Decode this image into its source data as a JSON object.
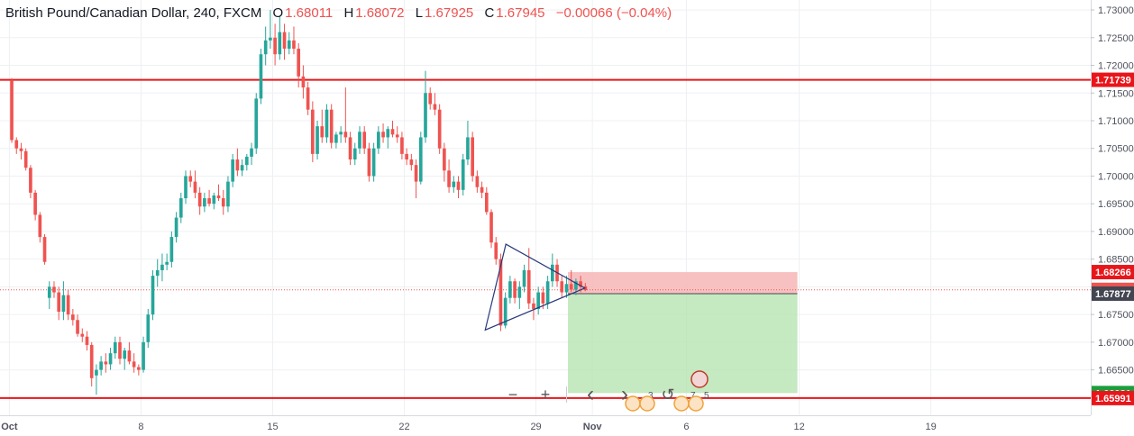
{
  "legend": {
    "symbol": "British Pound/Canadian Dollar, 240, FXCM",
    "open_label": "O",
    "open": "1.68011",
    "high_label": "H",
    "high": "1.68072",
    "low_label": "L",
    "low": "1.67925",
    "close_label": "C",
    "close": "1.67945",
    "change": "−0.00066 (−0.04%)"
  },
  "colors": {
    "up": "#26a69a",
    "down": "#ef5350",
    "level_line": "#e8161b",
    "last_price": "#ef5350",
    "stop_zone": "#f7b6b6",
    "target_zone": "#b7e4b0",
    "triangle": "#283a7a",
    "entry_line": "#434651"
  },
  "toolbar": {
    "zoom_out": "−",
    "zoom_in": "+",
    "scroll_left": "‹",
    "scroll_right": "›",
    "reset": "↺",
    "badge_a": "3",
    "badge_b": "7",
    "badge_c": "5"
  },
  "chart_data": {
    "type": "candlestick",
    "ylim": [
      1.6568,
      1.7318
    ],
    "x_range_days": [
      -0.5,
      57.5
    ],
    "x_ticks": [
      {
        "label": "Oct",
        "day": 0
      },
      {
        "label": "8",
        "day": 7
      },
      {
        "label": "15",
        "day": 14
      },
      {
        "label": "22",
        "day": 21
      },
      {
        "label": "29",
        "day": 28
      },
      {
        "label": "Nov",
        "day": 31
      },
      {
        "label": "6",
        "day": 36
      },
      {
        "label": "12",
        "day": 42
      },
      {
        "label": "19",
        "day": 49
      }
    ],
    "y_ticks": [
      "1.73000",
      "1.72500",
      "1.72000",
      "1.71500",
      "1.71000",
      "1.70500",
      "1.70000",
      "1.69500",
      "1.69000",
      "1.68500",
      "1.68000",
      "1.67500",
      "1.67000",
      "1.66500",
      "1.66000"
    ],
    "horizontal_levels": [
      {
        "value": 1.71739,
        "label": "1.71739"
      },
      {
        "value": 1.65991,
        "label": "1.65991"
      }
    ],
    "last_price": {
      "value": 1.67945,
      "label": "1.67945"
    },
    "position": {
      "entry": 1.67877,
      "entry_label": "1.67877",
      "stop": 1.68266,
      "stop_label": "1.68266",
      "target": 1.66081,
      "target_label": "1.66081",
      "day_start": 29.7,
      "day_end": 41.9
    },
    "triangle": [
      [
        26.4,
        1.6877
      ],
      [
        25.3,
        1.6722
      ],
      [
        30.6,
        1.67977
      ]
    ],
    "bars_per_day": 4,
    "candles": [
      [
        1.7173,
        1.7177,
        1.706,
        1.7065
      ],
      [
        1.7065,
        1.707,
        1.704,
        1.705
      ],
      [
        1.705,
        1.706,
        1.703,
        1.7045
      ],
      [
        1.7045,
        1.705,
        1.701,
        1.7015
      ],
      [
        1.7015,
        1.702,
        1.696,
        1.697
      ],
      [
        1.697,
        1.6975,
        1.692,
        1.693
      ],
      [
        1.693,
        1.6935,
        1.688,
        1.689
      ],
      [
        1.689,
        1.6895,
        1.684,
        1.6845
      ],
      [
        1.678,
        1.681,
        1.676,
        1.68
      ],
      [
        1.68,
        1.681,
        1.678,
        1.679
      ],
      [
        1.679,
        1.68,
        1.674,
        1.6755
      ],
      [
        1.6755,
        1.681,
        1.674,
        1.6785
      ],
      [
        1.6785,
        1.6795,
        1.674,
        1.675
      ],
      [
        1.675,
        1.676,
        1.673,
        1.674
      ],
      [
        1.674,
        1.675,
        1.671,
        1.6715
      ],
      [
        1.6715,
        1.6725,
        1.67,
        1.671
      ],
      [
        1.671,
        1.672,
        1.6685,
        1.6695
      ],
      [
        1.6695,
        1.67,
        1.662,
        1.6635
      ],
      [
        1.664,
        1.666,
        1.6605,
        1.665
      ],
      [
        1.665,
        1.6675,
        1.664,
        1.6665
      ],
      [
        1.6665,
        1.668,
        1.6645,
        1.666
      ],
      [
        1.666,
        1.669,
        1.665,
        1.668
      ],
      [
        1.668,
        1.671,
        1.667,
        1.67
      ],
      [
        1.67,
        1.671,
        1.666,
        1.667
      ],
      [
        1.667,
        1.669,
        1.665,
        1.6685
      ],
      [
        1.6685,
        1.67,
        1.666,
        1.6665
      ],
      [
        1.6665,
        1.668,
        1.6645,
        1.6655
      ],
      [
        1.6655,
        1.666,
        1.664,
        1.665
      ],
      [
        1.665,
        1.671,
        1.6645,
        1.67
      ],
      [
        1.67,
        1.676,
        1.669,
        1.675
      ],
      [
        1.675,
        1.683,
        1.674,
        1.682
      ],
      [
        1.682,
        1.685,
        1.68,
        1.683
      ],
      [
        1.683,
        1.686,
        1.681,
        1.684
      ],
      [
        1.684,
        1.686,
        1.683,
        1.6845
      ],
      [
        1.6845,
        1.69,
        1.6835,
        1.689
      ],
      [
        1.689,
        1.6935,
        1.688,
        1.6925
      ],
      [
        1.6925,
        1.697,
        1.6915,
        1.696
      ],
      [
        1.696,
        1.701,
        1.695,
        1.7
      ],
      [
        1.7,
        1.701,
        1.698,
        1.699
      ],
      [
        1.699,
        1.701,
        1.696,
        1.697
      ],
      [
        1.697,
        1.698,
        1.693,
        1.6945
      ],
      [
        1.6945,
        1.697,
        1.6935,
        1.696
      ],
      [
        1.696,
        1.6975,
        1.6945,
        1.695
      ],
      [
        1.695,
        1.697,
        1.694,
        1.6965
      ],
      [
        1.6965,
        1.6985,
        1.6955,
        1.696
      ],
      [
        1.696,
        1.6975,
        1.693,
        1.6945
      ],
      [
        1.6945,
        1.7,
        1.6935,
        1.699
      ],
      [
        1.699,
        1.704,
        1.698,
        1.703
      ],
      [
        1.703,
        1.705,
        1.7,
        1.701
      ],
      [
        1.701,
        1.703,
        1.7,
        1.702
      ],
      [
        1.702,
        1.704,
        1.701,
        1.7035
      ],
      [
        1.7035,
        1.706,
        1.702,
        1.705
      ],
      [
        1.705,
        1.715,
        1.704,
        1.714
      ],
      [
        1.714,
        1.723,
        1.713,
        1.722
      ],
      [
        1.722,
        1.727,
        1.72,
        1.7245
      ],
      [
        1.7245,
        1.73,
        1.723,
        1.725
      ],
      [
        1.725,
        1.7275,
        1.72,
        1.722
      ],
      [
        1.722,
        1.729,
        1.721,
        1.726
      ],
      [
        1.726,
        1.7275,
        1.721,
        1.723
      ],
      [
        1.723,
        1.726,
        1.722,
        1.7245
      ],
      [
        1.7245,
        1.727,
        1.722,
        1.723
      ],
      [
        1.723,
        1.724,
        1.716,
        1.718
      ],
      [
        1.718,
        1.72,
        1.714,
        1.716
      ],
      [
        1.716,
        1.717,
        1.711,
        1.712
      ],
      [
        1.712,
        1.7135,
        1.7025,
        1.704
      ],
      [
        1.704,
        1.71,
        1.703,
        1.709
      ],
      [
        1.709,
        1.712,
        1.706,
        1.707
      ],
      [
        1.707,
        1.713,
        1.706,
        1.712
      ],
      [
        1.712,
        1.713,
        1.705,
        1.706
      ],
      [
        1.706,
        1.708,
        1.705,
        1.7075
      ],
      [
        1.7075,
        1.709,
        1.706,
        1.708
      ],
      [
        1.708,
        1.716,
        1.706,
        1.707
      ],
      [
        1.707,
        1.708,
        1.702,
        1.703
      ],
      [
        1.703,
        1.706,
        1.702,
        1.705
      ],
      [
        1.705,
        1.709,
        1.704,
        1.708
      ],
      [
        1.708,
        1.709,
        1.704,
        1.705
      ],
      [
        1.705,
        1.706,
        1.699,
        1.7
      ],
      [
        1.7,
        1.706,
        1.699,
        1.705
      ],
      [
        1.705,
        1.709,
        1.704,
        1.708
      ],
      [
        1.708,
        1.7095,
        1.706,
        1.707
      ],
      [
        1.707,
        1.709,
        1.705,
        1.7085
      ],
      [
        1.7085,
        1.71,
        1.707,
        1.7075
      ],
      [
        1.7075,
        1.709,
        1.706,
        1.707
      ],
      [
        1.707,
        1.708,
        1.703,
        1.704
      ],
      [
        1.704,
        1.705,
        1.702,
        1.703
      ],
      [
        1.703,
        1.704,
        1.701,
        1.702
      ],
      [
        1.702,
        1.703,
        1.696,
        1.699
      ],
      [
        1.699,
        1.708,
        1.6985,
        1.707
      ],
      [
        1.707,
        1.719,
        1.706,
        1.715
      ],
      [
        1.715,
        1.716,
        1.712,
        1.713
      ],
      [
        1.713,
        1.715,
        1.711,
        1.712
      ],
      [
        1.712,
        1.713,
        1.704,
        1.705
      ],
      [
        1.705,
        1.706,
        1.699,
        1.701
      ],
      [
        1.701,
        1.703,
        1.697,
        1.698
      ],
      [
        1.698,
        1.7,
        1.697,
        1.699
      ],
      [
        1.699,
        1.7,
        1.696,
        1.6975
      ],
      [
        1.6975,
        1.704,
        1.6965,
        1.703
      ],
      [
        1.703,
        1.71,
        1.702,
        1.707
      ],
      [
        1.707,
        1.708,
        1.699,
        1.7
      ],
      [
        1.7,
        1.701,
        1.697,
        1.698
      ],
      [
        1.698,
        1.699,
        1.696,
        1.697
      ],
      [
        1.697,
        1.698,
        1.693,
        1.6935
      ],
      [
        1.6935,
        1.694,
        1.687,
        1.688
      ],
      [
        1.688,
        1.689,
        1.684,
        1.685
      ],
      [
        1.685,
        1.686,
        1.672,
        1.673
      ],
      [
        1.673,
        1.679,
        1.6725,
        1.678
      ],
      [
        1.678,
        1.682,
        1.677,
        1.681
      ],
      [
        1.681,
        1.6815,
        1.677,
        1.678
      ],
      [
        1.678,
        1.681,
        1.676,
        1.68
      ],
      [
        1.68,
        1.684,
        1.679,
        1.683
      ],
      [
        1.683,
        1.687,
        1.676,
        1.677
      ],
      [
        1.677,
        1.678,
        1.674,
        1.676
      ],
      [
        1.676,
        1.68,
        1.675,
        1.679
      ],
      [
        1.679,
        1.68,
        1.676,
        1.677
      ],
      [
        1.677,
        1.682,
        1.676,
        1.681
      ],
      [
        1.681,
        1.686,
        1.68,
        1.684
      ],
      [
        1.684,
        1.685,
        1.68,
        1.681
      ],
      [
        1.681,
        1.682,
        1.678,
        1.679
      ],
      [
        1.679,
        1.682,
        1.678,
        1.6805
      ],
      [
        1.6805,
        1.683,
        1.679,
        1.6795
      ],
      [
        1.6795,
        1.6815,
        1.6785,
        1.681
      ],
      [
        1.681,
        1.682,
        1.679,
        1.68
      ],
      [
        1.6801,
        1.6807,
        1.6792,
        1.6794
      ]
    ]
  }
}
